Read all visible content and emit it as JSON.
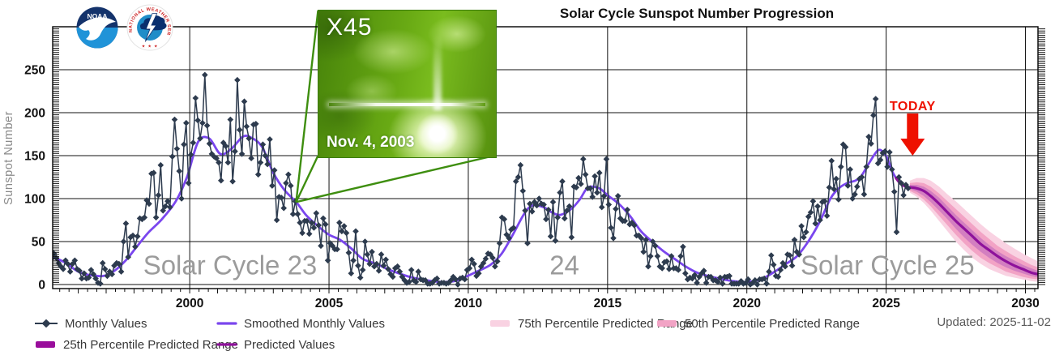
{
  "header": {
    "title": "Solar Cycle Sunspot Number Progression",
    "updated": "Updated: 2025-11-02"
  },
  "logos": {
    "noaa": "NOAA",
    "nws": "NATIONAL WEATHER SERVICE",
    "nws_stars": "★ ★ ★"
  },
  "inset": {
    "flare_class": "X45",
    "date": "Nov. 4, 2003"
  },
  "legend": {
    "items": [
      {
        "key": "monthly",
        "label": "Monthly Values"
      },
      {
        "key": "smoothed",
        "label": "Smoothed Monthly Values"
      },
      {
        "key": "band75",
        "label": "75th Percentile Predicted Range"
      },
      {
        "key": "band50",
        "label": "50th Percentile Predicted Range"
      },
      {
        "key": "band25",
        "label": "25th Percentile Predicted Range"
      },
      {
        "key": "predicted",
        "label": "Predicted Values"
      }
    ]
  },
  "chart_data": {
    "type": "line",
    "title": "Solar Cycle Sunspot Number Progression",
    "xlabel": "",
    "ylabel": "Sunspot Number",
    "xlim": [
      1995.08,
      2030.45
    ],
    "ylim": [
      0,
      300
    ],
    "x_ticks": [
      2000,
      2005,
      2010,
      2015,
      2020,
      2025,
      2030
    ],
    "y_ticks": [
      0,
      50,
      100,
      150,
      200,
      250
    ],
    "grid": true,
    "legend_position": "bottom",
    "colors": {
      "monthly": "#2d3b4e",
      "smoothed": "#7a46ee",
      "predicted": "#8e119b",
      "band75": "#f9d2e2",
      "band50": "#f2a3c5",
      "band25": "#d37fc0",
      "today": "#ee1100",
      "callout": "#3e8e0f",
      "grid": "#111111",
      "annotation": "#9b9b9b",
      "axis_label": "#8a8a8a"
    },
    "annotations": [
      {
        "label": "Solar Cycle 23",
        "year": 2001.45,
        "value": 20
      },
      {
        "label": "24",
        "year": 2013.45,
        "value": 20
      },
      {
        "label": "Solar Cycle 25",
        "year": 2025.05,
        "value": 20
      }
    ],
    "today": {
      "year": 2025.95,
      "label": "TODAY"
    },
    "flare_point": {
      "year": 2003.82,
      "value": 96
    },
    "monthly": {
      "1995": [
        30,
        36,
        31,
        25,
        21,
        18,
        28,
        24,
        15,
        24,
        28,
        18
      ],
      "1996": [
        16,
        7,
        13,
        7,
        8,
        17,
        12,
        7,
        2,
        1,
        25,
        18
      ],
      "1997": [
        10,
        15,
        12,
        22,
        25,
        24,
        15,
        50,
        71,
        32,
        55,
        57
      ],
      "1998": [
        44,
        56,
        77,
        76,
        78,
        98,
        94,
        129,
        130,
        78,
        104,
        139
      ],
      "1999": [
        86,
        91,
        97,
        90,
        149,
        192,
        158,
        132,
        100,
        163,
        188,
        118
      ],
      "2000": [
        151,
        165,
        217,
        191,
        170,
        188,
        244,
        185,
        164,
        152,
        149,
        147
      ],
      "2001": [
        142,
        121,
        165,
        161,
        142,
        192,
        120,
        155,
        238,
        180,
        152,
        213
      ],
      "2002": [
        184,
        170,
        147,
        186,
        187,
        128,
        142,
        163,
        150,
        140,
        169,
        115
      ],
      "2003": [
        133,
        75,
        102,
        101,
        89,
        118,
        128,
        115,
        82,
        97,
        82,
        72
      ],
      "2004": [
        60,
        74,
        74,
        59,
        72,
        66,
        83,
        69,
        45,
        77,
        70,
        28
      ],
      "2005": [
        48,
        45,
        41,
        41,
        72,
        62,
        68,
        60,
        37,
        13,
        28,
        62
      ],
      "2006": [
        22,
        8,
        17,
        50,
        35,
        24,
        38,
        21,
        24,
        16,
        35,
        22
      ],
      "2007": [
        29,
        18,
        12,
        9,
        19,
        21,
        15,
        9,
        5,
        2,
        3,
        17
      ],
      "2008": [
        5,
        3,
        15,
        6,
        5,
        5,
        1,
        1,
        2,
        5,
        7,
        1
      ],
      "2009": [
        2,
        2,
        1,
        2,
        5,
        9,
        6,
        0,
        7,
        8,
        6,
        17
      ],
      "2010": [
        19,
        29,
        24,
        10,
        13,
        21,
        25,
        30,
        36,
        35,
        31,
        21
      ],
      "2011": [
        27,
        48,
        78,
        76,
        58,
        54,
        64,
        66,
        120,
        125,
        139,
        109
      ],
      "2012": [
        86,
        48,
        94,
        85,
        96,
        92,
        100,
        94,
        93,
        76,
        87,
        56
      ],
      "2013": [
        96,
        51,
        78,
        107,
        120,
        77,
        86,
        91,
        55,
        114,
        113,
        124
      ],
      "2014": [
        117,
        146,
        128,
        112,
        112,
        102,
        126,
        107,
        130,
        90,
        103,
        146
      ],
      "2015": [
        93,
        66,
        54,
        88,
        103,
        77,
        74,
        74,
        87,
        70,
        72,
        69
      ],
      "2016": [
        57,
        57,
        54,
        38,
        52,
        21,
        33,
        50,
        45,
        33,
        21,
        19
      ],
      "2017": [
        26,
        27,
        18,
        33,
        19,
        19,
        17,
        33,
        44,
        13,
        6,
        8
      ],
      "2018": [
        7,
        11,
        2,
        9,
        13,
        16,
        2,
        9,
        9,
        5,
        5,
        3
      ],
      "2019": [
        8,
        1,
        9,
        9,
        10,
        1,
        1,
        1,
        1,
        4,
        1,
        2
      ],
      "2020": [
        6,
        0,
        2,
        5,
        0,
        6,
        6,
        7,
        1,
        15,
        34,
        23
      ],
      "2021": [
        10,
        9,
        17,
        25,
        21,
        35,
        34,
        22,
        52,
        38,
        35,
        68
      ],
      "2022": [
        55,
        61,
        79,
        84,
        97,
        71,
        91,
        75,
        96,
        97,
        80,
        113
      ],
      "2023": [
        144,
        111,
        123,
        99,
        137,
        163,
        160,
        115,
        134,
        100,
        105,
        114
      ],
      "2024": [
        123,
        125,
        105,
        137,
        172,
        164,
        197,
        216,
        141,
        145,
        153,
        155
      ],
      "2025": [
        137,
        154,
        134,
        108,
        61,
        125,
        118,
        104,
        116,
        112
      ]
    },
    "smoothed": [
      [
        1995.0,
        33
      ],
      [
        1995.5,
        26
      ],
      [
        1996.0,
        15
      ],
      [
        1996.4,
        11
      ],
      [
        1996.9,
        10
      ],
      [
        1997.3,
        16
      ],
      [
        1997.7,
        28
      ],
      [
        1998.1,
        44
      ],
      [
        1998.5,
        60
      ],
      [
        1999.0,
        76
      ],
      [
        1999.5,
        97
      ],
      [
        1999.9,
        125
      ],
      [
        2000.3,
        166
      ],
      [
        2000.7,
        170
      ],
      [
        2001.1,
        152
      ],
      [
        2001.5,
        158
      ],
      [
        2001.9,
        172
      ],
      [
        2002.2,
        171
      ],
      [
        2002.6,
        160
      ],
      [
        2003.0,
        130
      ],
      [
        2003.4,
        110
      ],
      [
        2003.82,
        96
      ],
      [
        2004.2,
        80
      ],
      [
        2004.6,
        68
      ],
      [
        2005.0,
        58
      ],
      [
        2005.4,
        52
      ],
      [
        2005.8,
        42
      ],
      [
        2006.2,
        30
      ],
      [
        2006.7,
        24
      ],
      [
        2007.1,
        18
      ],
      [
        2007.6,
        12
      ],
      [
        2008.0,
        8
      ],
      [
        2008.5,
        5
      ],
      [
        2009.0,
        3
      ],
      [
        2009.5,
        4
      ],
      [
        2009.9,
        9
      ],
      [
        2010.3,
        15
      ],
      [
        2010.8,
        23
      ],
      [
        2011.2,
        36
      ],
      [
        2011.6,
        58
      ],
      [
        2012.0,
        82
      ],
      [
        2012.3,
        92
      ],
      [
        2012.7,
        90
      ],
      [
        2013.0,
        84
      ],
      [
        2013.3,
        81
      ],
      [
        2013.7,
        88
      ],
      [
        2014.0,
        99
      ],
      [
        2014.3,
        113
      ],
      [
        2014.7,
        112
      ],
      [
        2015.0,
        104
      ],
      [
        2015.4,
        94
      ],
      [
        2015.8,
        80
      ],
      [
        2016.2,
        62
      ],
      [
        2016.6,
        50
      ],
      [
        2017.0,
        39
      ],
      [
        2017.4,
        30
      ],
      [
        2017.8,
        21
      ],
      [
        2018.2,
        14
      ],
      [
        2018.6,
        10
      ],
      [
        2019.0,
        7
      ],
      [
        2019.5,
        4
      ],
      [
        2020.0,
        3
      ],
      [
        2020.5,
        6
      ],
      [
        2021.0,
        15
      ],
      [
        2021.4,
        24
      ],
      [
        2021.8,
        33
      ],
      [
        2022.2,
        50
      ],
      [
        2022.6,
        72
      ],
      [
        2023.0,
        100
      ],
      [
        2023.3,
        112
      ],
      [
        2023.6,
        118
      ],
      [
        2023.9,
        121
      ],
      [
        2024.1,
        126
      ],
      [
        2024.4,
        142
      ],
      [
        2024.7,
        156
      ],
      [
        2024.9,
        154
      ],
      [
        2025.05,
        146
      ],
      [
        2025.2,
        133
      ],
      [
        2025.35,
        124
      ]
    ],
    "predicted": [
      [
        2025.35,
        124
      ],
      [
        2025.5,
        118
      ],
      [
        2025.7,
        114
      ],
      [
        2025.9,
        113
      ],
      [
        2026.1,
        112
      ],
      [
        2026.35,
        109
      ],
      [
        2026.6,
        103
      ],
      [
        2026.9,
        94
      ],
      [
        2027.2,
        84
      ],
      [
        2027.5,
        74
      ],
      [
        2027.8,
        65
      ],
      [
        2028.1,
        56
      ],
      [
        2028.4,
        47
      ],
      [
        2028.7,
        40
      ],
      [
        2029.0,
        33
      ],
      [
        2029.3,
        27
      ],
      [
        2029.6,
        22
      ],
      [
        2029.9,
        18
      ],
      [
        2030.2,
        14
      ],
      [
        2030.45,
        12
      ]
    ],
    "band75": [
      [
        2025.85,
        107,
        121
      ],
      [
        2026.1,
        102,
        124
      ],
      [
        2026.35,
        95,
        124
      ],
      [
        2026.6,
        86,
        121
      ],
      [
        2026.9,
        74,
        114
      ],
      [
        2027.2,
        62,
        105
      ],
      [
        2027.5,
        50,
        97
      ],
      [
        2027.8,
        40,
        88
      ],
      [
        2028.1,
        31,
        79
      ],
      [
        2028.4,
        24,
        70
      ],
      [
        2028.7,
        18,
        62
      ],
      [
        2029.0,
        14,
        55
      ],
      [
        2029.3,
        10,
        48
      ],
      [
        2029.6,
        8,
        42
      ],
      [
        2029.9,
        6,
        36
      ],
      [
        2030.2,
        4,
        31
      ],
      [
        2030.45,
        3,
        27
      ]
    ],
    "band50": [
      [
        2025.85,
        109,
        118
      ],
      [
        2026.1,
        105,
        119
      ],
      [
        2026.35,
        99,
        118
      ],
      [
        2026.6,
        91,
        114
      ],
      [
        2026.9,
        80,
        106
      ],
      [
        2027.2,
        69,
        97
      ],
      [
        2027.5,
        58,
        88
      ],
      [
        2027.8,
        48,
        79
      ],
      [
        2028.1,
        39,
        70
      ],
      [
        2028.4,
        31,
        61
      ],
      [
        2028.7,
        25,
        53
      ],
      [
        2029.0,
        20,
        45
      ],
      [
        2029.3,
        15,
        39
      ],
      [
        2029.6,
        12,
        33
      ],
      [
        2029.9,
        9,
        28
      ],
      [
        2030.2,
        7,
        23
      ],
      [
        2030.45,
        6,
        20
      ]
    ],
    "band25": [
      [
        2025.85,
        111,
        116
      ],
      [
        2026.1,
        108,
        116
      ],
      [
        2026.35,
        103,
        114
      ],
      [
        2026.6,
        96,
        109
      ],
      [
        2026.9,
        86,
        101
      ],
      [
        2027.2,
        76,
        91
      ],
      [
        2027.5,
        65,
        81
      ],
      [
        2027.8,
        55,
        72
      ],
      [
        2028.1,
        46,
        63
      ],
      [
        2028.4,
        38,
        54
      ],
      [
        2028.7,
        31,
        46
      ],
      [
        2029.0,
        25,
        39
      ],
      [
        2029.3,
        20,
        33
      ],
      [
        2029.6,
        16,
        28
      ],
      [
        2029.9,
        13,
        23
      ],
      [
        2030.2,
        10,
        19
      ],
      [
        2030.45,
        8,
        16
      ]
    ]
  }
}
